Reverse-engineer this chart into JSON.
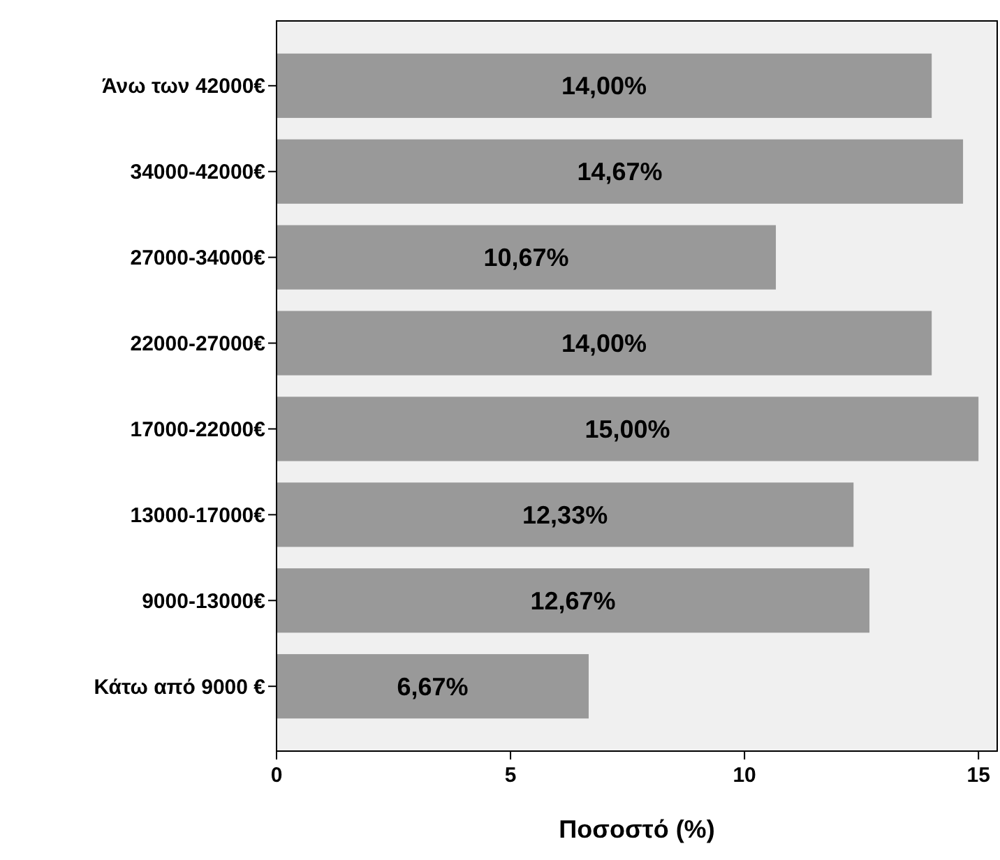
{
  "chart_data": {
    "type": "bar",
    "orientation": "horizontal",
    "xlabel": "Ποσοστό (%)",
    "categories": [
      "Άνω των 42000€",
      "34000-42000€",
      "27000-34000€",
      "22000-27000€",
      "17000-22000€",
      "13000-17000€",
      "9000-13000€",
      "Κάτω από 9000 €"
    ],
    "values": [
      14.0,
      14.67,
      10.67,
      14.0,
      15.0,
      12.33,
      12.67,
      6.67
    ],
    "value_labels": [
      "14,00%",
      "14,67%",
      "10,67%",
      "14,00%",
      "15,00%",
      "12,33%",
      "12,67%",
      "6,67%"
    ],
    "color": "#999999",
    "xlim": [
      0,
      15.4
    ],
    "xticks": [
      0,
      5,
      10,
      15
    ],
    "grid": false
  }
}
